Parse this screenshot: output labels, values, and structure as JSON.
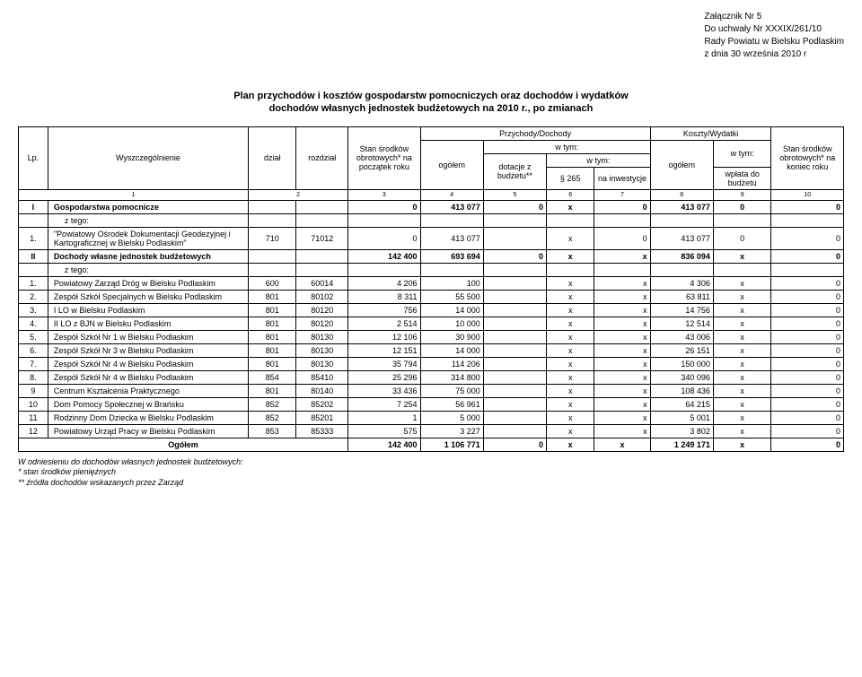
{
  "header": {
    "attach": "Załącznik Nr 5",
    "resolution": "Do uchwały Nr XXXIX/261/10",
    "council": "Rady Powiatu w Bielsku Podlaskim",
    "date": "z dnia 30 września 2010 r"
  },
  "title": {
    "line1": "Plan przychodów i kosztów gospodarstw pomocniczych oraz dochodów i wydatków",
    "line2": "dochodów własnych jednostek budżetowych na 2010 r., po zmianach"
  },
  "table_headers": {
    "lp": "Lp.",
    "name": "Wyszczególnienie",
    "dzial": "dział",
    "rozdzial": "rozdział",
    "stan_pocz": "Stan środków obrotowych* na początek roku",
    "przychody": "Przychody/Dochody",
    "ogolem1": "ogółem",
    "wtym": "w tym:",
    "dotacje": "dotacje z budżetu**",
    "p265": "§ 265",
    "na_inw": "na inwestycje",
    "koszty": "Koszty/Wydatki",
    "ogolem2": "ogółem",
    "wplata": "wpłata do budżetu",
    "stan_kon": "Stan środków obrotowych* na koniec roku"
  },
  "colnums": [
    "1",
    "2",
    "3",
    "4",
    "5",
    "6",
    "7",
    "8",
    "9",
    "10"
  ],
  "sections": {
    "I": {
      "lp": "I",
      "name": "Gospodarstwa pomocnicze",
      "c3": "0",
      "c4": "413 077",
      "c5": "0",
      "c6": "x",
      "c7": "0",
      "c8": "413 077",
      "c9": "0",
      "c10": "0"
    },
    "ztego1": "z tego:",
    "r1": {
      "lp": "1.",
      "name": "\"Powiatowy Ośrodek Dokumentacji Geodezyjnej i Kartograficznej w Bielsku Podlaskim\"",
      "dzial": "710",
      "rozdzial": "71012",
      "c3": "0",
      "c4": "413 077",
      "c5": "",
      "c6": "x",
      "c7": "0",
      "c8": "413 077",
      "c9": "0",
      "c10": "0"
    },
    "II": {
      "lp": "II",
      "name": "Dochody własne jednostek budżetowych",
      "c3": "142 400",
      "c4": "693 694",
      "c5": "0",
      "c6": "x",
      "c7": "x",
      "c8": "836 094",
      "c9": "x",
      "c10": "0"
    },
    "ztego2": "z tego:"
  },
  "rows": [
    {
      "lp": "1.",
      "name": "Powiatowy Zarząd Dróg w Bielsku Podlaskim",
      "dzial": "600",
      "rozdzial": "60014",
      "c3": "4 206",
      "c4": "100",
      "c5": "",
      "c6": "x",
      "c7": "x",
      "c8": "4 306",
      "c9": "x",
      "c10": "0"
    },
    {
      "lp": "2.",
      "name": "Zespół Szkół Specjalnych w Bielsku Podlaskim",
      "dzial": "801",
      "rozdzial": "80102",
      "c3": "8 311",
      "c4": "55 500",
      "c5": "",
      "c6": "x",
      "c7": "x",
      "c8": "63 811",
      "c9": "x",
      "c10": "0"
    },
    {
      "lp": "3.",
      "name": "I LO w Bielsku Podlaskim",
      "dzial": "801",
      "rozdzial": "80120",
      "c3": "756",
      "c4": "14 000",
      "c5": "",
      "c6": "x",
      "c7": "x",
      "c8": "14 756",
      "c9": "x",
      "c10": "0"
    },
    {
      "lp": "4.",
      "name": "II LO z BJN w Bielsku Podlaskim",
      "dzial": "801",
      "rozdzial": "80120",
      "c3": "2 514",
      "c4": "10 000",
      "c5": "",
      "c6": "x",
      "c7": "x",
      "c8": "12 514",
      "c9": "x",
      "c10": "0"
    },
    {
      "lp": "5.",
      "name": "Zespół Szkół Nr 1 w Bielsku Podlaskim",
      "dzial": "801",
      "rozdzial": "80130",
      "c3": "12 106",
      "c4": "30 900",
      "c5": "",
      "c6": "x",
      "c7": "x",
      "c8": "43 006",
      "c9": "x",
      "c10": "0"
    },
    {
      "lp": "6.",
      "name": "Zespół Szkół Nr 3 w Bielsku Podlaskim",
      "dzial": "801",
      "rozdzial": "80130",
      "c3": "12 151",
      "c4": "14 000",
      "c5": "",
      "c6": "x",
      "c7": "x",
      "c8": "26 151",
      "c9": "x",
      "c10": "0"
    },
    {
      "lp": "7.",
      "name": "Zespół Szkół Nr 4 w Bielsku Podlaskim",
      "dzial": "801",
      "rozdzial": "80130",
      "c3": "35 794",
      "c4": "114 206",
      "c5": "",
      "c6": "x",
      "c7": "x",
      "c8": "150 000",
      "c9": "x",
      "c10": "0"
    },
    {
      "lp": "8.",
      "name": "Zespół Szkół Nr 4 w Bielsku Podlaskim",
      "dzial": "854",
      "rozdzial": "85410",
      "c3": "25 296",
      "c4": "314 800",
      "c5": "",
      "c6": "x",
      "c7": "x",
      "c8": "340 096",
      "c9": "x",
      "c10": "0"
    },
    {
      "lp": "9",
      "name": "Centrum Kształcenia Praktycznego",
      "dzial": "801",
      "rozdzial": "80140",
      "c3": "33 436",
      "c4": "75 000",
      "c5": "",
      "c6": "x",
      "c7": "x",
      "c8": "108 436",
      "c9": "x",
      "c10": "0"
    },
    {
      "lp": "10",
      "name": "Dom Pomocy Społecznej w Brańsku",
      "dzial": "852",
      "rozdzial": "85202",
      "c3": "7 254",
      "c4": "56 961",
      "c5": "",
      "c6": "x",
      "c7": "x",
      "c8": "64 215",
      "c9": "x",
      "c10": "0"
    },
    {
      "lp": "11",
      "name": "Rodzinny Dom Dziecka w Bielsku Podlaskim",
      "dzial": "852",
      "rozdzial": "85201",
      "c3": "1",
      "c4": "5 000",
      "c5": "",
      "c6": "x",
      "c7": "x",
      "c8": "5 001",
      "c9": "x",
      "c10": "0"
    },
    {
      "lp": "12",
      "name": "Powiatowy Urząd Pracy w Bielsku Podlaskim",
      "dzial": "853",
      "rozdzial": "85333",
      "c3": "575",
      "c4": "3 227",
      "c5": "",
      "c6": "x",
      "c7": "x",
      "c8": "3 802",
      "c9": "x",
      "c10": "0"
    }
  ],
  "total": {
    "label": "Ogółem",
    "c3": "142 400",
    "c4": "1 106 771",
    "c5": "0",
    "c6": "x",
    "c7": "x",
    "c8": "1 249 171",
    "c9": "x",
    "c10": "0"
  },
  "footnotes": {
    "f1": "W odniesieniu do dochodów własnych jednostek budżetowych:",
    "f2": "*  stan środków pieniężnych",
    "f3": "** źródła dochodów wskazanych przez Zarząd"
  }
}
